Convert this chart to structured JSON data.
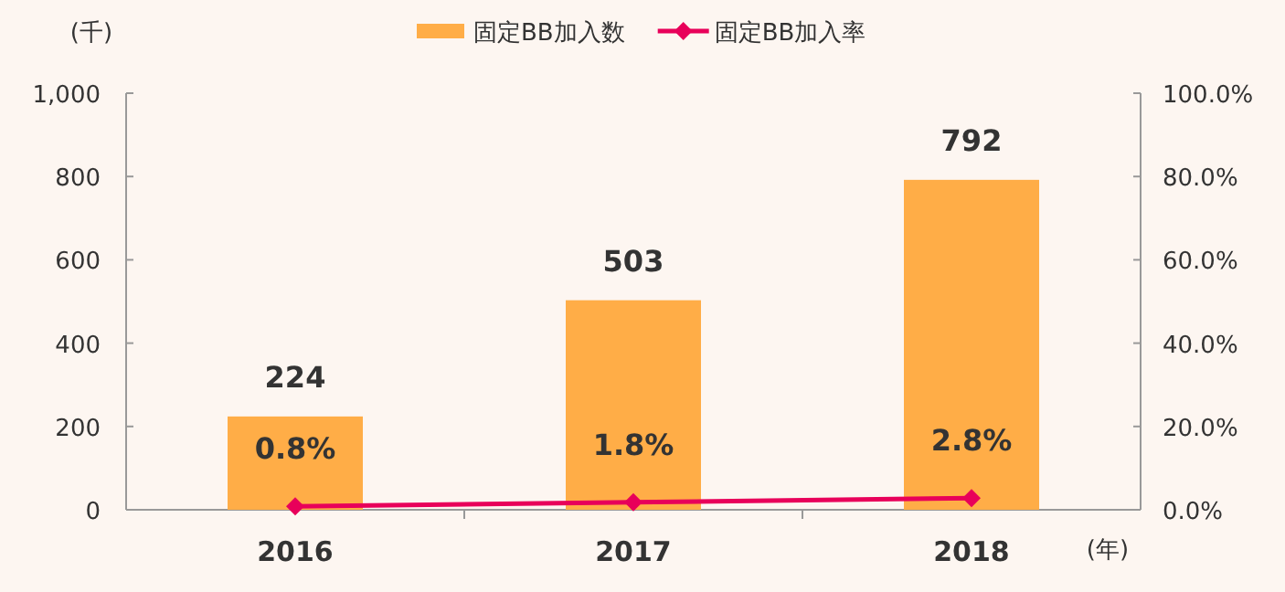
{
  "chart_data": {
    "type": "bar",
    "categories": [
      "2016",
      "2017",
      "2018"
    ],
    "series": [
      {
        "name": "固定BB加入数",
        "color": "#ffad47",
        "values": [
          224,
          503,
          792
        ],
        "value_labels": [
          "224",
          "503",
          "792"
        ]
      },
      {
        "name": "固定BB加入率",
        "type": "line",
        "axis": "y2",
        "color": "#e8005a",
        "marker": "diamond",
        "values": [
          0.8,
          1.8,
          2.8
        ],
        "value_labels": [
          "0.8%",
          "1.8%",
          "2.8%"
        ]
      }
    ],
    "ylabel": "(千)",
    "xlabel": "(年)",
    "ylim": [
      0,
      1000
    ],
    "yticks": [
      0,
      200,
      400,
      600,
      800,
      {
        "value": 1000,
        "label": "1,000"
      }
    ],
    "y2lim": [
      0,
      100
    ],
    "y2ticks": [
      {
        "value": 0,
        "label": "0.0%"
      },
      {
        "value": 20,
        "label": "20.0%"
      },
      {
        "value": 40,
        "label": "40.0%"
      },
      {
        "value": 60,
        "label": "60.0%"
      },
      {
        "value": 80,
        "label": "80.0%"
      },
      {
        "value": 100,
        "label": "100.0%"
      }
    ],
    "legend": "top",
    "grid": false
  }
}
